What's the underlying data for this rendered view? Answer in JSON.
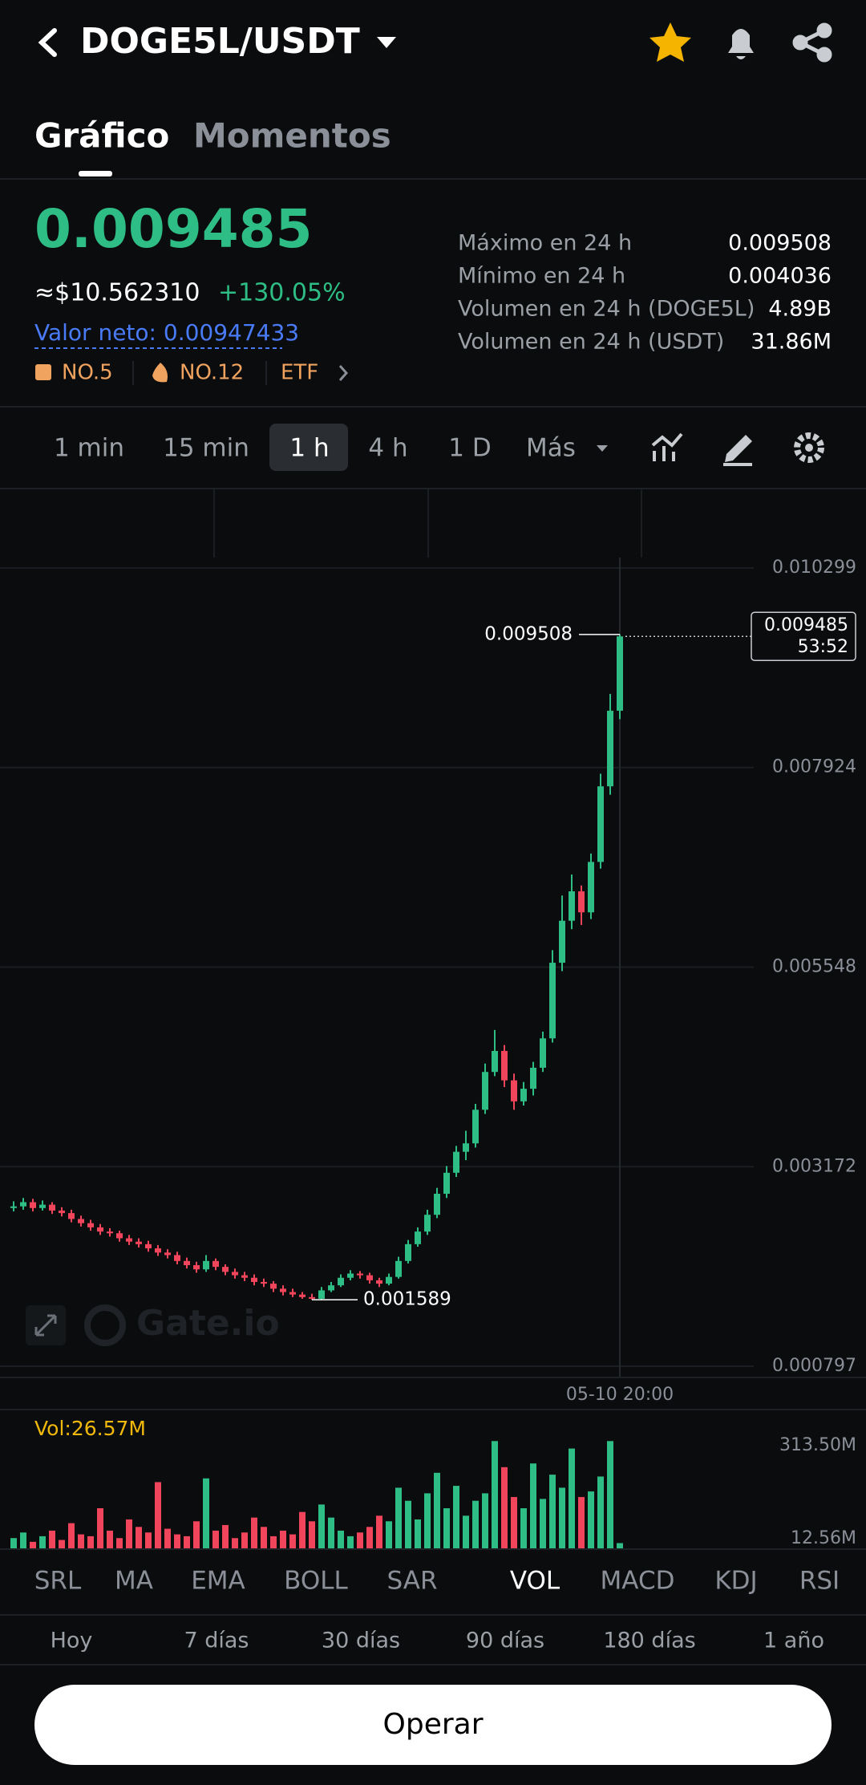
{
  "header": {
    "title": "DOGE5L/USDT"
  },
  "tabs": [
    "Gráfico",
    "Momentos"
  ],
  "price": {
    "last": "0.009485",
    "usd": "≈$10.562310",
    "change": "+130.05%",
    "net_value": "Valor neto: 0.00947433",
    "badges": [
      "NO.5",
      "NO.12",
      "ETF"
    ]
  },
  "stats": [
    {
      "label": "Máximo en 24 h",
      "value": "0.009508"
    },
    {
      "label": "Mínimo en 24 h",
      "value": "0.004036"
    },
    {
      "label": "Volumen en 24 h (DOGE5L)",
      "value": "4.89B"
    },
    {
      "label": "Volumen en 24 h (USDT)",
      "value": "31.86M"
    }
  ],
  "intervals": [
    "1 min",
    "15 min",
    "1 h",
    "4 h",
    "1 D",
    "Más"
  ],
  "chart_data": {
    "type": "candlestick",
    "up_color": "#2ebd85",
    "down_color": "#f0455b",
    "ylim": [
      0.000797,
      0.010299
    ],
    "yticks": [
      0.010299,
      0.007924,
      0.005548,
      0.003172,
      0.000797
    ],
    "x_label": "05-10 20:00",
    "watermark": "Gate.io",
    "max_label": 0.009508,
    "min_label": 0.001589,
    "last_price": 0.009485,
    "countdown": "53:52",
    "candles": [
      [
        0.00268,
        0.00276,
        0.00264,
        0.0027
      ],
      [
        0.0027,
        0.0028,
        0.00266,
        0.00275
      ],
      [
        0.00275,
        0.00279,
        0.00264,
        0.00268
      ],
      [
        0.00268,
        0.00277,
        0.00265,
        0.00272
      ],
      [
        0.00272,
        0.00275,
        0.00261,
        0.00265
      ],
      [
        0.00265,
        0.00269,
        0.00258,
        0.00262
      ],
      [
        0.00262,
        0.00266,
        0.00251,
        0.00255
      ],
      [
        0.00255,
        0.00259,
        0.00246,
        0.0025
      ],
      [
        0.0025,
        0.00254,
        0.00241,
        0.00245
      ],
      [
        0.00245,
        0.00249,
        0.00236,
        0.0024
      ],
      [
        0.0024,
        0.00244,
        0.00234,
        0.00238
      ],
      [
        0.00238,
        0.00241,
        0.00228,
        0.00232
      ],
      [
        0.00232,
        0.00236,
        0.00224,
        0.00228
      ],
      [
        0.00228,
        0.00232,
        0.00221,
        0.00225
      ],
      [
        0.00225,
        0.00229,
        0.00216,
        0.0022
      ],
      [
        0.0022,
        0.00224,
        0.00211,
        0.00215
      ],
      [
        0.00215,
        0.00219,
        0.00208,
        0.00212
      ],
      [
        0.00212,
        0.00216,
        0.00201,
        0.00205
      ],
      [
        0.00205,
        0.00209,
        0.00196,
        0.002
      ],
      [
        0.002,
        0.00204,
        0.00191,
        0.00195
      ],
      [
        0.00195,
        0.00212,
        0.00192,
        0.00205
      ],
      [
        0.00205,
        0.00208,
        0.00194,
        0.00198
      ],
      [
        0.00198,
        0.00201,
        0.00188,
        0.00192
      ],
      [
        0.00192,
        0.00196,
        0.00184,
        0.00188
      ],
      [
        0.00188,
        0.00192,
        0.00181,
        0.00185
      ],
      [
        0.00185,
        0.00189,
        0.00176,
        0.0018
      ],
      [
        0.0018,
        0.00184,
        0.00174,
        0.00178
      ],
      [
        0.00178,
        0.00181,
        0.00168,
        0.00172
      ],
      [
        0.00172,
        0.00176,
        0.00164,
        0.00168
      ],
      [
        0.00168,
        0.00172,
        0.00162,
        0.00165
      ],
      [
        0.00165,
        0.00168,
        0.0016,
        0.00162
      ],
      [
        0.00162,
        0.00166,
        0.001589,
        0.0016
      ],
      [
        0.0016,
        0.00174,
        0.00159,
        0.0017
      ],
      [
        0.0017,
        0.0018,
        0.00168,
        0.00176
      ],
      [
        0.00176,
        0.00189,
        0.00174,
        0.00185
      ],
      [
        0.00185,
        0.00194,
        0.00182,
        0.0019
      ],
      [
        0.0019,
        0.00193,
        0.00184,
        0.00188
      ],
      [
        0.00188,
        0.00191,
        0.00178,
        0.00182
      ],
      [
        0.00182,
        0.00185,
        0.00174,
        0.00178
      ],
      [
        0.00178,
        0.0019,
        0.00176,
        0.00186
      ],
      [
        0.00186,
        0.0021,
        0.00184,
        0.00205
      ],
      [
        0.00205,
        0.0023,
        0.00202,
        0.00225
      ],
      [
        0.00225,
        0.00245,
        0.00222,
        0.0024
      ],
      [
        0.0024,
        0.00266,
        0.00236,
        0.0026
      ],
      [
        0.0026,
        0.00292,
        0.00256,
        0.00285
      ],
      [
        0.00285,
        0.00318,
        0.0028,
        0.0031
      ],
      [
        0.0031,
        0.00342,
        0.00305,
        0.00335
      ],
      [
        0.00335,
        0.0036,
        0.00325,
        0.00345
      ],
      [
        0.00345,
        0.00392,
        0.0034,
        0.00385
      ],
      [
        0.00385,
        0.0044,
        0.0038,
        0.0043
      ],
      [
        0.0043,
        0.0048,
        0.00425,
        0.00455
      ],
      [
        0.00455,
        0.00462,
        0.00412,
        0.0042
      ],
      [
        0.0042,
        0.00428,
        0.00385,
        0.00395
      ],
      [
        0.00395,
        0.00418,
        0.0039,
        0.0041
      ],
      [
        0.0041,
        0.00442,
        0.00402,
        0.00435
      ],
      [
        0.00435,
        0.00478,
        0.0043,
        0.0047
      ],
      [
        0.0047,
        0.00575,
        0.00465,
        0.0056
      ],
      [
        0.0056,
        0.0064,
        0.0055,
        0.0061
      ],
      [
        0.0061,
        0.00665,
        0.006,
        0.00645
      ],
      [
        0.00645,
        0.00652,
        0.00605,
        0.0062
      ],
      [
        0.0062,
        0.0069,
        0.00612,
        0.0068
      ],
      [
        0.0068,
        0.00785,
        0.00672,
        0.0077
      ],
      [
        0.0077,
        0.0088,
        0.0076,
        0.0086
      ],
      [
        0.0086,
        0.009508,
        0.0085,
        0.009485
      ]
    ],
    "volume": {
      "label": "Vol:26.57M",
      "ylim": [
        12.56,
        313.5
      ],
      "yticks": [
        {
          "value": 313.5,
          "label": "313.50M"
        },
        {
          "value": 12.56,
          "label": "12.56M"
        }
      ],
      "values": [
        40,
        55,
        30,
        45,
        60,
        35,
        80,
        50,
        45,
        120,
        60,
        40,
        90,
        70,
        55,
        190,
        65,
        50,
        45,
        85,
        200,
        60,
        75,
        40,
        55,
        95,
        70,
        45,
        60,
        50,
        110,
        85,
        130,
        95,
        60,
        45,
        55,
        70,
        100,
        85,
        175,
        140,
        90,
        160,
        215,
        120,
        180,
        100,
        140,
        160,
        300,
        230,
        150,
        120,
        240,
        145,
        210,
        175,
        280,
        150,
        165,
        205,
        300,
        26.57
      ]
    }
  },
  "indicators": [
    "SRL",
    "MA",
    "EMA",
    "BOLL",
    "SAR",
    "VOL",
    "MACD",
    "KDJ",
    "RSI"
  ],
  "periods": [
    "Hoy",
    "7 días",
    "30 días",
    "90 días",
    "180 días",
    "1 año"
  ],
  "button": "Operar"
}
